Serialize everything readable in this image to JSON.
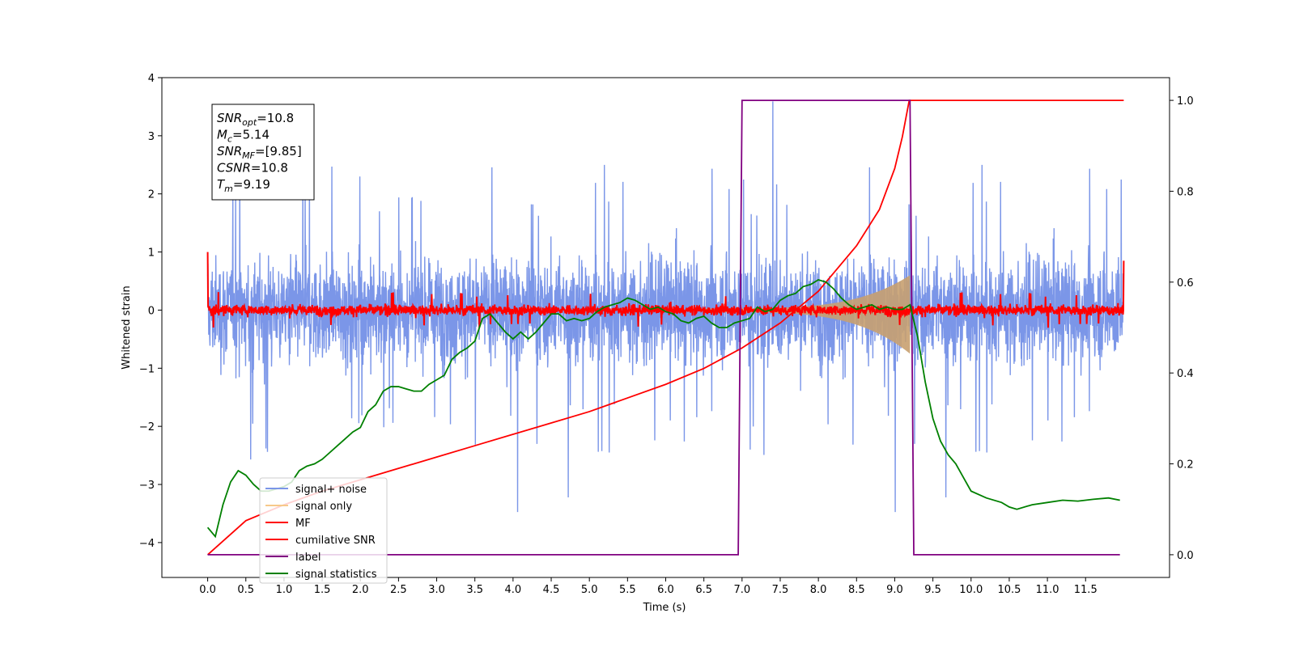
{
  "chart_data": {
    "type": "line",
    "xlabel": "Time (s)",
    "ylabel": "Whitened strain",
    "xlim": [
      -0.6,
      12.6
    ],
    "ylim_left": [
      -4.6,
      4.0
    ],
    "ylim_right": [
      -0.05,
      1.05
    ],
    "xticks": [
      "0.0",
      "0.5",
      "1.0",
      "1.5",
      "2.0",
      "2.5",
      "3.0",
      "3.5",
      "4.0",
      "4.5",
      "5.0",
      "5.5",
      "6.0",
      "6.5",
      "7.0",
      "7.5",
      "8.0",
      "8.5",
      "9.0",
      "9.5",
      "10.0",
      "10.5",
      "11.0",
      "11.5"
    ],
    "yticks_left": [
      "4",
      "3",
      "2",
      "1",
      "0",
      "−1",
      "−2",
      "−3",
      "−4"
    ],
    "yticks_right": [
      "1.0",
      "0.8",
      "0.6",
      "0.4",
      "0.2",
      "0.0"
    ],
    "info_box": [
      {
        "var": "SNR",
        "sub": "opt",
        "value": "=10.8"
      },
      {
        "var": "M",
        "sub": "c",
        "value": "=5.14"
      },
      {
        "var": "SNR",
        "sub": "MF",
        "value": "=[9.85]"
      },
      {
        "var": "CSNR",
        "sub": "",
        "value": "=10.8"
      },
      {
        "var": "T",
        "sub": "m",
        "value": "=9.19"
      }
    ],
    "legend": {
      "placement": "lower-left",
      "entries": [
        {
          "label": "signal+ noise",
          "color": "#7b96e8"
        },
        {
          "label": "signal only",
          "color": "#f7c98a"
        },
        {
          "label": "MF",
          "color": "#ff0000"
        },
        {
          "label": "cumilative SNR",
          "color": "#ff0000"
        },
        {
          "label": "label",
          "color": "#800080"
        },
        {
          "label": "signal statistics",
          "color": "#008000"
        }
      ]
    },
    "series": [
      {
        "key": "noise",
        "axis": "left",
        "color": "#7b96e8",
        "envelope": [
          0.0,
          12.0,
          -1.4,
          1.4
        ],
        "spikes_max": 3.62,
        "spikes_min": -3.5
      },
      {
        "key": "signal_only",
        "axis": "left",
        "color": "#c8a070",
        "start": 6.5,
        "end": 9.2,
        "peak_amplitude": 1.0
      },
      {
        "key": "MF",
        "axis": "left",
        "color": "#ff0000",
        "mean": 0.0,
        "amplitude": 0.2
      },
      {
        "key": "cumulative_snr",
        "axis": "right",
        "color": "#ff0000",
        "x": [
          0.0,
          0.5,
          1.0,
          1.5,
          2.0,
          2.5,
          3.0,
          3.5,
          4.0,
          4.5,
          5.0,
          5.5,
          6.0,
          6.5,
          7.0,
          7.5,
          8.0,
          8.5,
          8.8,
          9.0,
          9.1,
          9.19,
          9.2,
          12.0
        ],
        "y": [
          0.0,
          0.075,
          0.11,
          0.14,
          0.165,
          0.19,
          0.215,
          0.24,
          0.265,
          0.29,
          0.315,
          0.345,
          0.375,
          0.41,
          0.455,
          0.51,
          0.58,
          0.68,
          0.76,
          0.85,
          0.92,
          1.0,
          1.0,
          1.0
        ]
      },
      {
        "key": "label",
        "axis": "right",
        "color": "#800080",
        "x": [
          0.0,
          6.95,
          7.0,
          9.2,
          9.25,
          11.95
        ],
        "y": [
          0.0,
          0.0,
          1.0,
          1.0,
          0.0,
          0.0
        ]
      },
      {
        "key": "signal_statistics",
        "axis": "right",
        "color": "#008000",
        "x": [
          0.0,
          0.1,
          0.2,
          0.3,
          0.4,
          0.5,
          0.6,
          0.7,
          0.8,
          0.9,
          1.0,
          1.1,
          1.2,
          1.3,
          1.4,
          1.5,
          1.6,
          1.7,
          1.8,
          1.9,
          2.0,
          2.1,
          2.2,
          2.3,
          2.4,
          2.5,
          2.6,
          2.7,
          2.8,
          2.9,
          3.0,
          3.1,
          3.2,
          3.3,
          3.4,
          3.5,
          3.6,
          3.7,
          3.8,
          3.9,
          4.0,
          4.1,
          4.2,
          4.3,
          4.4,
          4.5,
          4.6,
          4.7,
          4.8,
          4.9,
          5.0,
          5.1,
          5.2,
          5.3,
          5.4,
          5.5,
          5.6,
          5.7,
          5.8,
          5.9,
          6.0,
          6.1,
          6.2,
          6.3,
          6.4,
          6.5,
          6.6,
          6.7,
          6.8,
          6.9,
          7.0,
          7.1,
          7.2,
          7.3,
          7.4,
          7.5,
          7.6,
          7.7,
          7.8,
          7.9,
          8.0,
          8.1,
          8.2,
          8.3,
          8.4,
          8.5,
          8.6,
          8.7,
          8.8,
          8.9,
          9.0,
          9.1,
          9.2,
          9.3,
          9.4,
          9.5,
          9.6,
          9.7,
          9.8,
          9.9,
          10.0,
          10.2,
          10.4,
          10.5,
          10.6,
          10.8,
          11.0,
          11.2,
          11.4,
          11.6,
          11.8,
          11.95
        ],
        "y": [
          0.06,
          0.04,
          0.11,
          0.16,
          0.185,
          0.175,
          0.155,
          0.14,
          0.14,
          0.145,
          0.15,
          0.16,
          0.185,
          0.195,
          0.2,
          0.21,
          0.225,
          0.24,
          0.255,
          0.27,
          0.28,
          0.315,
          0.33,
          0.36,
          0.37,
          0.37,
          0.365,
          0.36,
          0.36,
          0.375,
          0.385,
          0.395,
          0.43,
          0.445,
          0.455,
          0.47,
          0.52,
          0.53,
          0.51,
          0.49,
          0.475,
          0.49,
          0.475,
          0.49,
          0.51,
          0.53,
          0.53,
          0.515,
          0.52,
          0.515,
          0.52,
          0.535,
          0.545,
          0.55,
          0.555,
          0.565,
          0.56,
          0.55,
          0.54,
          0.545,
          0.535,
          0.53,
          0.515,
          0.51,
          0.52,
          0.525,
          0.51,
          0.5,
          0.5,
          0.51,
          0.515,
          0.52,
          0.545,
          0.535,
          0.54,
          0.56,
          0.57,
          0.575,
          0.59,
          0.595,
          0.605,
          0.6,
          0.585,
          0.565,
          0.55,
          0.54,
          0.545,
          0.55,
          0.54,
          0.545,
          0.54,
          0.54,
          0.55,
          0.48,
          0.38,
          0.3,
          0.25,
          0.22,
          0.2,
          0.17,
          0.14,
          0.125,
          0.115,
          0.105,
          0.1,
          0.11,
          0.115,
          0.12,
          0.118,
          0.122,
          0.125,
          0.12
        ]
      }
    ]
  }
}
